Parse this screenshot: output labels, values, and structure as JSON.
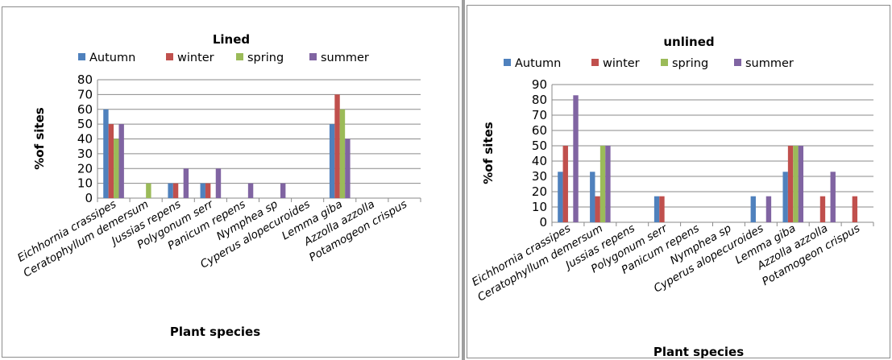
{
  "chart_data": [
    {
      "type": "bar",
      "title": "Lined",
      "xlabel": "Plant species",
      "ylabel": "%of sites",
      "ylim": [
        0,
        80
      ],
      "yticks": [
        "0",
        "10",
        "20",
        "30",
        "40",
        "50",
        "60",
        "70",
        "80"
      ],
      "grid": true,
      "legend_position": "top",
      "categories": [
        "Eichhornia crassipes",
        "Ceratophyllum demersum",
        "Jussias repens",
        "Polygonum serr",
        "Panicum repens",
        "Nymphea sp",
        "Cyperus alopecuroides",
        "Lemma giba",
        "Azzolla azzolla",
        "Potamogeon crispus"
      ],
      "series": [
        {
          "name": "Autumn",
          "color": "#4f81bd",
          "values": [
            60,
            0,
            10,
            10,
            0,
            0,
            0,
            50,
            0,
            0
          ]
        },
        {
          "name": "winter",
          "color": "#c0504d",
          "values": [
            50,
            0,
            10,
            10,
            0,
            0,
            0,
            70,
            0,
            0
          ]
        },
        {
          "name": "spring",
          "color": "#9bbb59",
          "values": [
            40,
            10,
            0,
            0,
            0,
            0,
            0,
            60,
            0,
            0
          ]
        },
        {
          "name": "summer",
          "color": "#8064a2",
          "values": [
            50,
            0,
            20,
            20,
            10,
            10,
            0,
            40,
            0,
            0
          ]
        }
      ]
    },
    {
      "type": "bar",
      "title": "unlined",
      "xlabel": "Plant species",
      "ylabel": "%of sites",
      "ylim": [
        0,
        90
      ],
      "yticks": [
        "0",
        "10",
        "20",
        "30",
        "40",
        "50",
        "60",
        "70",
        "80",
        "90"
      ],
      "grid": true,
      "legend_position": "top",
      "categories": [
        "Eichhornia crassipes",
        "Ceratophyllum demersum",
        "Jussias repens",
        "Polygonum serr",
        "Panicum repens",
        "Nymphea sp",
        "Cyperus  alopecuroides",
        "Lemma giba",
        "Azzolla azzolla",
        "Potamogeon crispus"
      ],
      "series": [
        {
          "name": "Autumn",
          "color": "#4f81bd",
          "values": [
            33,
            33,
            0,
            17,
            0,
            0,
            17,
            33,
            0,
            0
          ]
        },
        {
          "name": "winter",
          "color": "#c0504d",
          "values": [
            50,
            17,
            0,
            17,
            0,
            0,
            0,
            50,
            17,
            17
          ]
        },
        {
          "name": "spring",
          "color": "#9bbb59",
          "values": [
            0,
            50,
            0,
            0,
            0,
            0,
            0,
            50,
            0,
            0
          ]
        },
        {
          "name": "summer",
          "color": "#8064a2",
          "values": [
            83,
            50,
            0,
            0,
            0,
            0,
            17,
            50,
            33,
            0
          ]
        }
      ]
    }
  ]
}
